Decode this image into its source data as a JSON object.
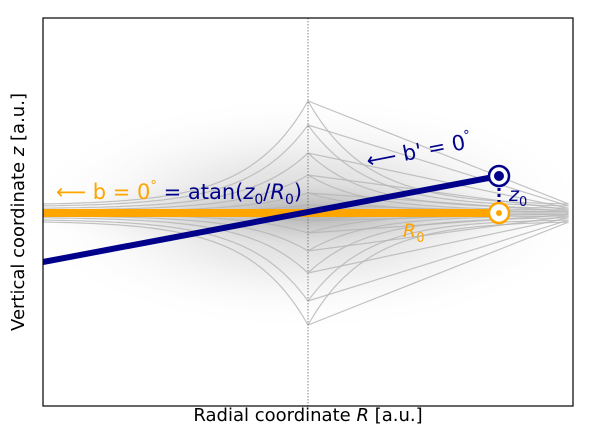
{
  "axes": {
    "xlabel_prefix": "Radial coordinate ",
    "xlabel_var": "R",
    "xlabel_suffix": " [a.u.]",
    "ylabel_prefix": "Vertical coordinate ",
    "ylabel_var": "z",
    "ylabel_suffix": " [a.u.]"
  },
  "annotations": {
    "b_arrow": "⟵ b = 0",
    "degree": "°",
    "b_equals": " = atan(",
    "z_sym": "z",
    "sub0": "0",
    "slash": "/",
    "R_sym": "R",
    "close_paren": ")",
    "bprime_arrow": "⟵ b' = 0",
    "z0_z": "z",
    "R0_R": "R"
  },
  "colors": {
    "orange": "#FFA500",
    "blue": "#00008B",
    "frame": "#000000",
    "contour": "#b4b4b4",
    "center_line": "#666666"
  }
}
